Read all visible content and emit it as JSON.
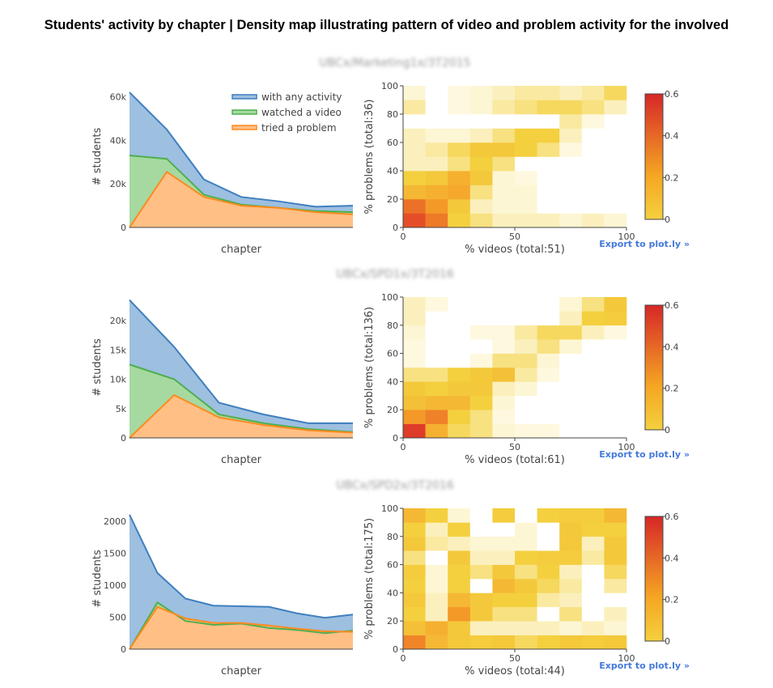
{
  "title": "Students' activity by chapter | Density map illustrating pattern of video and problem activity for the involved",
  "colors": {
    "any": "#3f7fbf",
    "any_fill": "#9dbfe0",
    "video": "#4fae4f",
    "video_fill": "#a6d9a0",
    "problem": "#ff8a1f",
    "problem_fill": "#ffbf85",
    "heat_low": "#fffbea",
    "heat_mid": "#f4d03f",
    "heat_high": "#d62728"
  },
  "legend": [
    "with any activity",
    "watched a video",
    "tried a problem"
  ],
  "export_label": "Export to plot.ly »",
  "chart_data": [
    {
      "type": "area",
      "course": "UBCx/Marketing1x/3T2015",
      "xlabel": "chapter",
      "ylabel": "# students",
      "ylim": [
        0,
        65000
      ],
      "yticks": [
        0,
        20000,
        40000,
        60000
      ],
      "yticklabels": [
        "0",
        "20k",
        "40k",
        "60k"
      ],
      "series": [
        {
          "name": "with any activity",
          "values": [
            62000,
            45000,
            22000,
            14000,
            12000,
            9500,
            10000
          ]
        },
        {
          "name": "watched a video",
          "values": [
            33000,
            31500,
            15000,
            10500,
            9000,
            7500,
            7000
          ]
        },
        {
          "name": "tried a problem",
          "values": [
            0,
            25500,
            14000,
            10000,
            9000,
            7000,
            6000
          ]
        }
      ]
    },
    {
      "type": "heatmap",
      "course": "UBCx/Marketing1x/3T2015",
      "xlabel": "% videos (total:51)",
      "ylabel": "% problems (total:36)",
      "xlim": [
        0,
        100
      ],
      "ylim": [
        0,
        100
      ],
      "zlim": [
        0,
        0.6
      ],
      "colorbar_ticks": [
        0,
        0.2,
        0.4,
        0.6
      ],
      "z": [
        [
          0.42,
          0.28,
          0.06,
          0.04,
          0.02,
          0.02,
          0.02,
          0.01,
          0.02,
          0.01
        ],
        [
          0.3,
          0.2,
          0.08,
          0.02,
          0.01,
          0.01,
          0,
          0,
          0,
          0
        ],
        [
          0.12,
          0.14,
          0.16,
          0.04,
          0.01,
          0.01,
          0,
          0,
          0,
          0
        ],
        [
          0.06,
          0.08,
          0.14,
          0.08,
          0.01,
          0.005,
          0,
          0,
          0,
          0
        ],
        [
          0.02,
          0.02,
          0.04,
          0.06,
          0.04,
          0,
          0,
          0,
          0,
          0
        ],
        [
          0.02,
          0.03,
          0.05,
          0.08,
          0.08,
          0.06,
          0.04,
          0.005,
          0,
          0
        ],
        [
          0.02,
          0.01,
          0.01,
          0.02,
          0.04,
          0.06,
          0.06,
          0.02,
          0,
          0
        ],
        [
          0,
          0,
          0,
          0,
          0,
          0,
          0,
          0.03,
          0.005,
          0
        ],
        [
          0.03,
          0,
          0.005,
          0.01,
          0.03,
          0.04,
          0.05,
          0.05,
          0.04,
          0.02
        ],
        [
          0.01,
          0,
          0.005,
          0.01,
          0.02,
          0.03,
          0.03,
          0.02,
          0.03,
          0.05
        ]
      ]
    },
    {
      "type": "area",
      "course": "UBCx/SPD1x/3T2016",
      "xlabel": "chapter",
      "ylabel": "# students",
      "ylim": [
        0,
        24000
      ],
      "yticks": [
        0,
        5000,
        10000,
        15000,
        20000
      ],
      "yticklabels": [
        "0",
        "5k",
        "10k",
        "15k",
        "20k"
      ],
      "series": [
        {
          "name": "with any activity",
          "values": [
            23500,
            15500,
            6000,
            4000,
            2500,
            2500
          ]
        },
        {
          "name": "watched a video",
          "values": [
            12500,
            10000,
            4000,
            2500,
            1500,
            1000
          ]
        },
        {
          "name": "tried a problem",
          "values": [
            0,
            7300,
            3500,
            2200,
            1300,
            900
          ]
        }
      ]
    },
    {
      "type": "heatmap",
      "course": "UBCx/SPD1x/3T2016",
      "xlabel": "% videos (total:61)",
      "ylabel": "% problems (total:136)",
      "xlim": [
        0,
        100
      ],
      "ylim": [
        0,
        100
      ],
      "zlim": [
        0,
        0.6
      ],
      "colorbar_ticks": [
        0,
        0.2,
        0.4,
        0.6
      ],
      "z": [
        [
          0.5,
          0.14,
          0.05,
          0.04,
          0.01,
          0.005,
          0.005,
          0,
          0,
          0
        ],
        [
          0.2,
          0.26,
          0.06,
          0.04,
          0.005,
          0,
          0,
          0,
          0,
          0
        ],
        [
          0.1,
          0.12,
          0.12,
          0.06,
          0.01,
          0,
          0,
          0,
          0,
          0
        ],
        [
          0.08,
          0.06,
          0.08,
          0.08,
          0.02,
          0.01,
          0,
          0,
          0,
          0
        ],
        [
          0.04,
          0.04,
          0.06,
          0.08,
          0.1,
          0.03,
          0.005,
          0,
          0,
          0
        ],
        [
          0.005,
          0,
          0,
          0.005,
          0.04,
          0.04,
          0.01,
          0,
          0,
          0
        ],
        [
          0.005,
          0,
          0,
          0,
          0.005,
          0.02,
          0.04,
          0.01,
          0,
          0
        ],
        [
          0.01,
          0,
          0,
          0.005,
          0.005,
          0.03,
          0.05,
          0.05,
          0.02,
          0.005
        ],
        [
          0.02,
          0,
          0,
          0,
          0,
          0,
          0,
          0.02,
          0.06,
          0.07
        ],
        [
          0.02,
          0.005,
          0,
          0,
          0,
          0,
          0,
          0.01,
          0.04,
          0.08
        ]
      ]
    },
    {
      "type": "area",
      "course": "UBCx/SPD2x/3T2016",
      "xlabel": "chapter",
      "ylabel": "# students",
      "ylim": [
        0,
        2200
      ],
      "yticks": [
        0,
        500,
        1000,
        1500,
        2000
      ],
      "yticklabels": [
        "0",
        "500",
        "1000",
        "1500",
        "2000"
      ],
      "series": [
        {
          "name": "with any activity",
          "values": [
            2100,
            1190,
            790,
            680,
            670,
            660,
            560,
            490,
            540
          ]
        },
        {
          "name": "watched a video",
          "values": [
            0,
            730,
            440,
            380,
            400,
            330,
            300,
            250,
            290
          ]
        },
        {
          "name": "tried a problem",
          "values": [
            0,
            660,
            480,
            410,
            410,
            370,
            320,
            280,
            270
          ]
        }
      ]
    },
    {
      "type": "heatmap",
      "course": "UBCx/SPD2x/3T2016",
      "xlabel": "% videos (total:44)",
      "ylabel": "% problems (total:175)",
      "xlim": [
        0,
        100
      ],
      "ylim": [
        0,
        100
      ],
      "zlim": [
        0,
        0.6
      ],
      "colorbar_ticks": [
        0,
        0.2,
        0.4,
        0.6
      ],
      "z": [
        [
          0.25,
          0.12,
          0.08,
          0.07,
          0.08,
          0.05,
          0.06,
          0.08,
          0.07,
          0.08
        ],
        [
          0.1,
          0.14,
          0.08,
          0.02,
          0.02,
          0.02,
          0.02,
          0.01,
          0.02,
          0.01
        ],
        [
          0.06,
          0.02,
          0.2,
          0.08,
          0.04,
          0.04,
          0,
          0.04,
          0,
          0.02
        ],
        [
          0.08,
          0.02,
          0.12,
          0.08,
          0.06,
          0.06,
          0.03,
          0.02,
          0,
          0
        ],
        [
          0.06,
          0.01,
          0.06,
          0,
          0.12,
          0.08,
          0.05,
          0.03,
          0,
          0.03
        ],
        [
          0.07,
          0.01,
          0.06,
          0.04,
          0.08,
          0.04,
          0.06,
          0.02,
          0,
          0.05
        ],
        [
          0.04,
          0,
          0.08,
          0.02,
          0.02,
          0.06,
          0.07,
          0.07,
          0.03,
          0.08
        ],
        [
          0.08,
          0.03,
          0.02,
          0.01,
          0.01,
          0.01,
          0,
          0.08,
          0.02,
          0.08
        ],
        [
          0.06,
          0.02,
          0.06,
          0,
          0,
          0.01,
          0,
          0.08,
          0.06,
          0.06
        ],
        [
          0.12,
          0.06,
          0.01,
          0,
          0.07,
          0,
          0.06,
          0.07,
          0.07,
          0.12
        ]
      ]
    }
  ]
}
